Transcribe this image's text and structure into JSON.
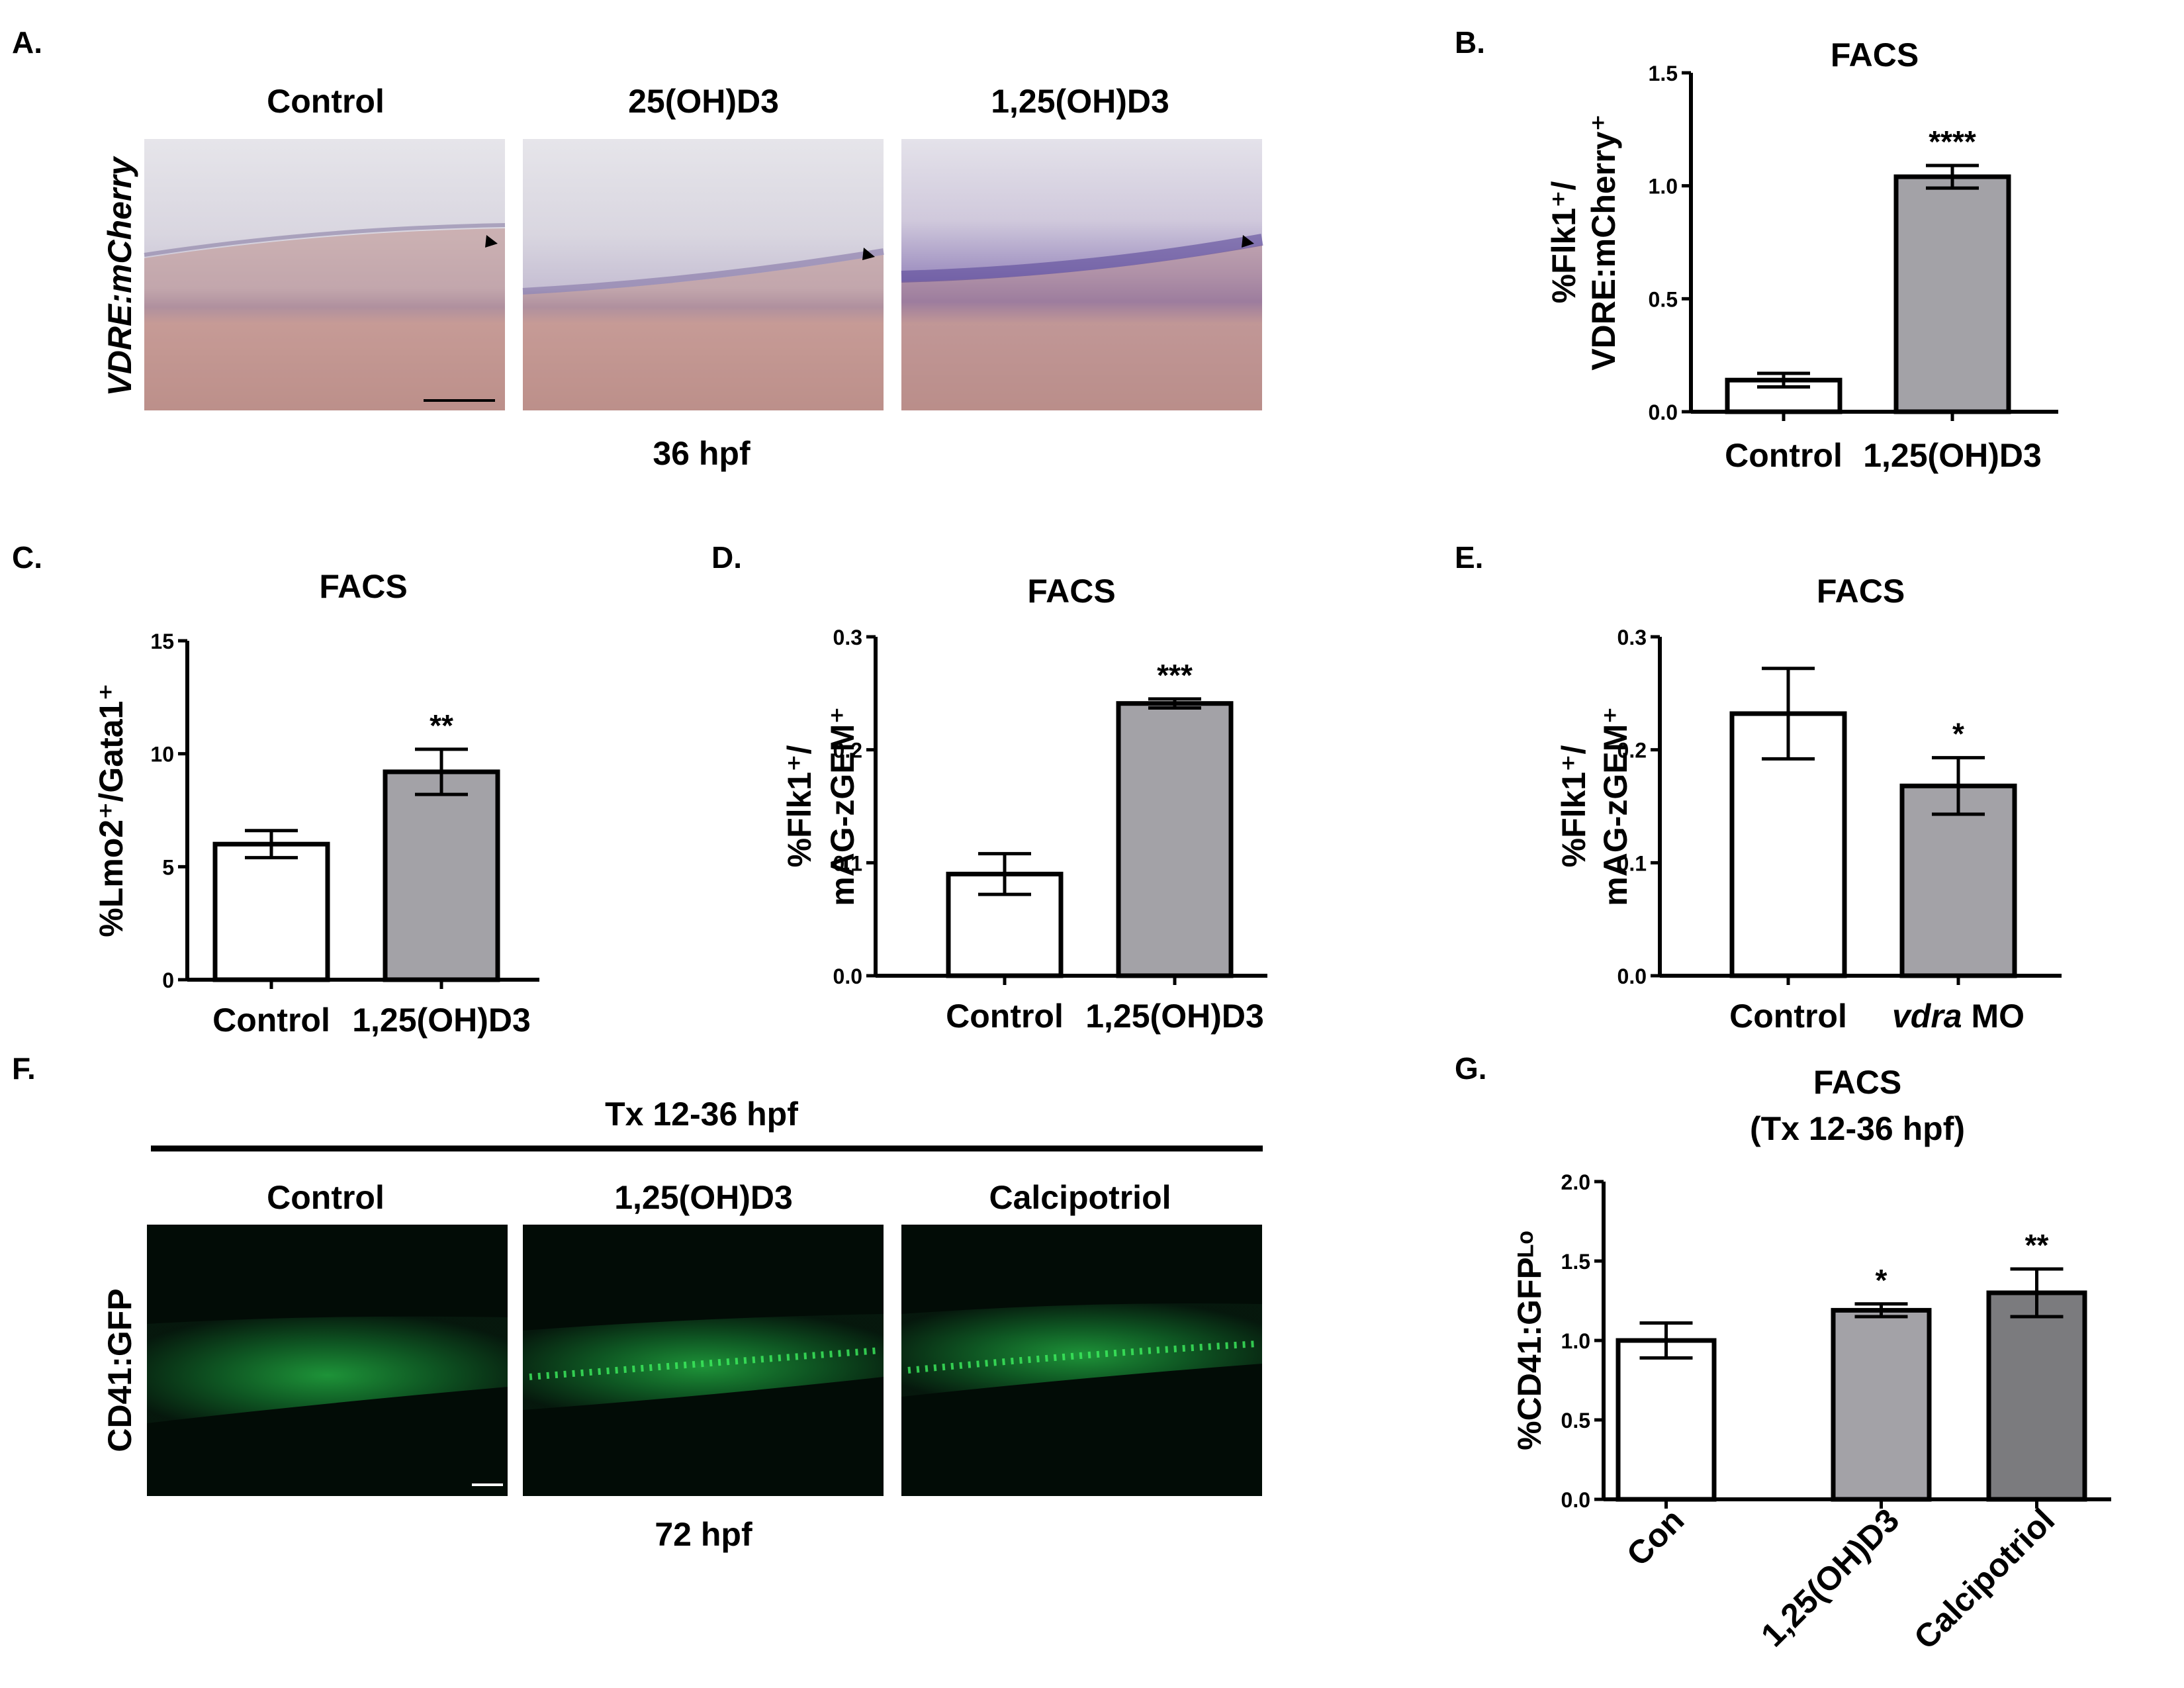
{
  "panels": {
    "A": {
      "letter": "A.",
      "columns": [
        "Control",
        "25(OH)D3",
        "1,25(OH)D3"
      ],
      "row_label": "VDRE:mCherry",
      "stage": "36 hpf"
    },
    "F": {
      "letter": "F.",
      "treatment": "Tx 12-36 hpf",
      "columns": [
        "Control",
        "1,25(OH)D3",
        "Calcipotriol"
      ],
      "row_label": "CD41:GFP",
      "stage": "72 hpf"
    },
    "B": {
      "letter": "B."
    },
    "C": {
      "letter": "C."
    },
    "D": {
      "letter": "D."
    },
    "E": {
      "letter": "E."
    },
    "G": {
      "letter": "G."
    }
  },
  "chart_data": [
    {
      "id": "B",
      "type": "bar",
      "title": "FACS",
      "ylabel_lines": [
        "%Flk1⁺/",
        "VDRE:mCherry⁺"
      ],
      "categories": [
        "Control",
        "1,25(OH)D3"
      ],
      "values": [
        0.14,
        1.04
      ],
      "errors": [
        0.03,
        0.05
      ],
      "significance": [
        "",
        "****"
      ],
      "bar_colors": [
        "#ffffff",
        "#a3a2a7"
      ],
      "ylim": [
        0,
        1.5
      ],
      "yticks": [
        0.0,
        0.5,
        1.0,
        1.5
      ],
      "ytick_labels": [
        "0.0",
        "0.5",
        "1.0",
        "1.5"
      ]
    },
    {
      "id": "C",
      "type": "bar",
      "title": "FACS",
      "ylabel_lines": [
        "%Lmo2⁺/Gata1⁺"
      ],
      "categories": [
        "Control",
        "1,25(OH)D3"
      ],
      "values": [
        6.0,
        9.2
      ],
      "errors": [
        0.6,
        1.0
      ],
      "significance": [
        "",
        "**"
      ],
      "bar_colors": [
        "#ffffff",
        "#a3a2a7"
      ],
      "ylim": [
        0,
        15
      ],
      "yticks": [
        0,
        5,
        10,
        15
      ],
      "ytick_labels": [
        "0",
        "5",
        "10",
        "15"
      ]
    },
    {
      "id": "D",
      "type": "bar",
      "title": "FACS",
      "ylabel_lines": [
        "%Flk1⁺/",
        "mAG-zGEM⁺"
      ],
      "categories": [
        "Control",
        "1,25(OH)D3"
      ],
      "values": [
        0.09,
        0.241
      ],
      "errors": [
        0.018,
        0.004
      ],
      "significance": [
        "",
        "***"
      ],
      "bar_colors": [
        "#ffffff",
        "#a3a2a7"
      ],
      "ylim": [
        0,
        0.3
      ],
      "yticks": [
        0.0,
        0.1,
        0.2,
        0.3
      ],
      "ytick_labels": [
        "0.0",
        "0.1",
        "0.2",
        "0.3"
      ]
    },
    {
      "id": "E",
      "type": "bar",
      "title": "FACS",
      "ylabel_lines": [
        "%Flk1⁺/",
        "mAG-zGEM⁺"
      ],
      "categories": [
        "Control",
        "vdra MO"
      ],
      "values": [
        0.232,
        0.168
      ],
      "errors": [
        0.04,
        0.025
      ],
      "significance": [
        "",
        "*"
      ],
      "bar_colors": [
        "#ffffff",
        "#a3a2a7"
      ],
      "ylim": [
        0,
        0.3
      ],
      "yticks": [
        0.0,
        0.1,
        0.2,
        0.3
      ],
      "ytick_labels": [
        "0.0",
        "0.1",
        "0.2",
        "0.3"
      ]
    },
    {
      "id": "G",
      "type": "bar",
      "title": "FACS",
      "subtitle": "(Tx 12-36 hpf)",
      "ylabel_lines": [
        "%CD41:GFPᴸᵒ"
      ],
      "categories": [
        "Con",
        "1,25(OH)D3",
        "Calcipotriol"
      ],
      "values": [
        1.0,
        1.19,
        1.3
      ],
      "errors": [
        0.11,
        0.04,
        0.15
      ],
      "significance": [
        "",
        "*",
        "**"
      ],
      "bar_colors": [
        "#ffffff",
        "#a3a2a7",
        "#7b7b7e"
      ],
      "ylim": [
        0,
        2.0
      ],
      "yticks": [
        0.0,
        0.5,
        1.0,
        1.5,
        2.0
      ],
      "ytick_labels": [
        "0.0",
        "0.5",
        "1.0",
        "1.5",
        "2.0"
      ]
    }
  ]
}
